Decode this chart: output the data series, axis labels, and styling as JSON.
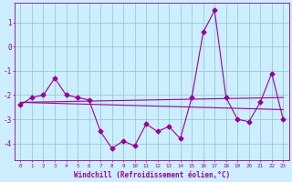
{
  "xlabel": "Windchill (Refroidissement éolien,°C)",
  "background_color": "#cceeff",
  "grid_color": "#99cccc",
  "line_color": "#990099",
  "x": [
    0,
    1,
    2,
    3,
    4,
    5,
    6,
    7,
    8,
    9,
    10,
    11,
    12,
    13,
    14,
    15,
    16,
    17,
    18,
    19,
    20,
    21,
    22,
    23
  ],
  "series1": [
    -2.4,
    -2.1,
    -2.0,
    -1.3,
    -2.0,
    -2.1,
    -2.2,
    -3.5,
    -4.2,
    -3.9,
    -4.1,
    -3.2,
    -3.5,
    -3.3,
    -3.8,
    -2.1,
    0.6,
    1.5,
    -2.1,
    -3.0,
    -3.1,
    -2.3,
    -1.1,
    -3.0
  ],
  "trend1_x": [
    0,
    23
  ],
  "trend1_y": [
    -2.3,
    -2.1
  ],
  "trend2_x": [
    0,
    23
  ],
  "trend2_y": [
    -2.3,
    -2.6
  ],
  "ylim": [
    -4.7,
    1.8
  ],
  "yticks": [
    -4,
    -3,
    -2,
    -1,
    0,
    1
  ],
  "xticks": [
    0,
    1,
    2,
    3,
    4,
    5,
    6,
    7,
    8,
    9,
    10,
    11,
    12,
    13,
    14,
    15,
    16,
    17,
    18,
    19,
    20,
    21,
    22,
    23
  ]
}
